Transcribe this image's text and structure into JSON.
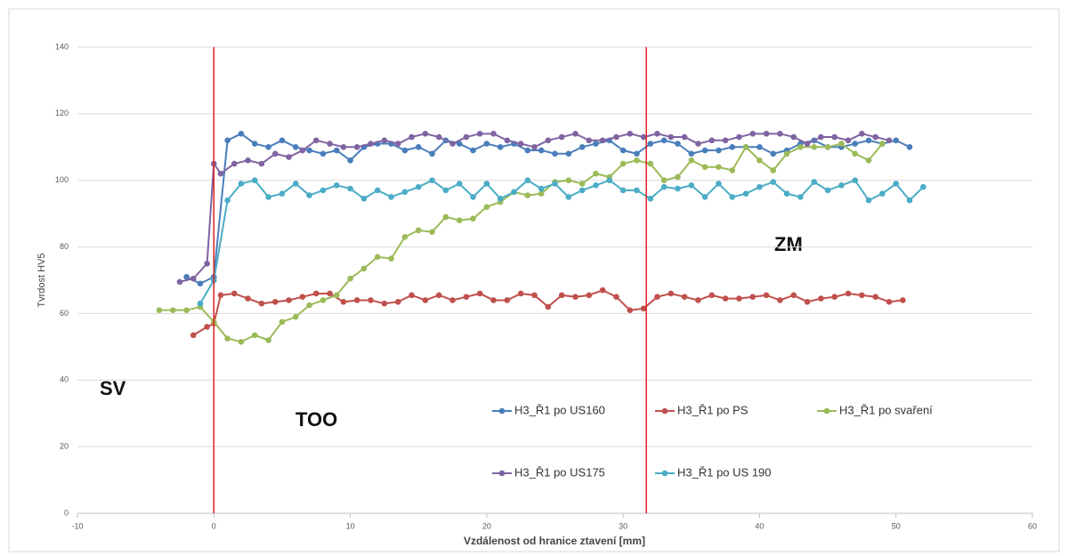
{
  "chart_data": {
    "type": "line",
    "y_label": "Tvrdost HV5",
    "x_label": "Vzdálenost od hranice ztavení [mm]",
    "annotations": [
      "SV",
      "TOO",
      "ZM"
    ],
    "xlim": [
      -10,
      60
    ],
    "xticks": [
      -10,
      0,
      10,
      20,
      30,
      40,
      50,
      60
    ],
    "ylim": [
      0,
      140
    ],
    "yticks": [
      0,
      20,
      40,
      60,
      80,
      100,
      120,
      140
    ],
    "grid": true,
    "vlines": [
      0,
      31.7
    ],
    "vline_color": "#e02020",
    "series": [
      {
        "name": "H3_Ř1 po US160",
        "color": "#4a7ebb",
        "x": [
          -2,
          -1,
          0,
          1,
          2,
          3,
          4,
          5,
          6,
          7,
          8,
          9,
          10,
          11,
          12,
          13,
          14,
          15,
          16,
          17,
          18,
          19,
          20,
          21,
          22,
          23,
          24,
          25,
          26,
          27,
          28,
          29,
          30,
          31,
          32,
          33,
          34,
          35,
          36,
          37,
          38,
          39,
          40,
          41,
          42,
          43,
          44,
          45,
          46,
          47,
          48,
          49,
          50,
          51
        ],
        "values": [
          71,
          69,
          71,
          112,
          114,
          111,
          110,
          112,
          110,
          109,
          108,
          109,
          106,
          110,
          111,
          111,
          109,
          110,
          108,
          112,
          111,
          109,
          111,
          110,
          111,
          109,
          109,
          108,
          108,
          110,
          111,
          112,
          109,
          108,
          111,
          112,
          111,
          108,
          109,
          109,
          110,
          110,
          110,
          108,
          109,
          111,
          112,
          110,
          110,
          111,
          112,
          111,
          112,
          110
        ]
      },
      {
        "name": "H3_Ř1 po PS",
        "color": "#c0504d",
        "x": [
          -1.5,
          -0.5,
          0,
          0.5,
          1.5,
          2.5,
          3.5,
          4.5,
          5.5,
          6.5,
          7.5,
          8.5,
          9.5,
          10.5,
          11.5,
          12.5,
          13.5,
          14.5,
          15.5,
          16.5,
          17.5,
          18.5,
          19.5,
          20.5,
          21.5,
          22.5,
          23.5,
          24.5,
          25.5,
          26.5,
          27.5,
          28.5,
          29.5,
          30.5,
          31.5,
          32.5,
          33.5,
          34.5,
          35.5,
          36.5,
          37.5,
          38.5,
          39.5,
          40.5,
          41.5,
          42.5,
          43.5,
          44.5,
          45.5,
          46.5,
          47.5,
          48.5,
          49.5,
          50.5
        ],
        "values": [
          53.5,
          56,
          57,
          65.5,
          66,
          64.5,
          63,
          63.5,
          64,
          65,
          66,
          66,
          63.5,
          64,
          64,
          63,
          63.5,
          65.5,
          64,
          65.5,
          64,
          65,
          66,
          64,
          64,
          66,
          65.5,
          62,
          65.5,
          65,
          65.5,
          67,
          65,
          61,
          61.5,
          65,
          66,
          65,
          64,
          65.5,
          64.5,
          64.5,
          65,
          65.5,
          64,
          65.5,
          63.5,
          64.5,
          65,
          66,
          65.5,
          65,
          63.5,
          64
        ]
      },
      {
        "name": "H3_Ř1 po svaření",
        "color": "#9bbb59",
        "x": [
          -4,
          -3,
          -2,
          -1,
          0,
          1,
          2,
          3,
          4,
          5,
          6,
          7,
          8,
          9,
          10,
          11,
          12,
          13,
          14,
          15,
          16,
          17,
          18,
          19,
          20,
          21,
          22,
          23,
          24,
          25,
          26,
          27,
          28,
          29,
          30,
          31,
          32,
          33,
          34,
          35,
          36,
          37,
          38,
          39,
          40,
          41,
          42,
          43,
          44,
          45,
          46,
          47,
          48,
          49
        ],
        "values": [
          61,
          61,
          61,
          62,
          57.5,
          52.5,
          51.5,
          53.5,
          52,
          57.5,
          59,
          62.5,
          64,
          65.5,
          70.5,
          73.5,
          77,
          76.5,
          83,
          85,
          84.5,
          89,
          88,
          88.5,
          92,
          93.5,
          96.5,
          95.5,
          96,
          99.5,
          100,
          99,
          102,
          101,
          105,
          106,
          105,
          100,
          101,
          106,
          104,
          104,
          103,
          110,
          106,
          103,
          108,
          110,
          110,
          110,
          111,
          108,
          106,
          111
        ]
      },
      {
        "name": "H3_Ř1 po US175",
        "color": "#8064a2",
        "x": [
          -2.5,
          -1.5,
          -0.5,
          0,
          0.5,
          1.5,
          2.5,
          3.5,
          4.5,
          5.5,
          6.5,
          7.5,
          8.5,
          9.5,
          10.5,
          11.5,
          12.5,
          13.5,
          14.5,
          15.5,
          16.5,
          17.5,
          18.5,
          19.5,
          20.5,
          21.5,
          22.5,
          23.5,
          24.5,
          25.5,
          26.5,
          27.5,
          28.5,
          29.5,
          30.5,
          31.5,
          32.5,
          33.5,
          34.5,
          35.5,
          36.5,
          37.5,
          38.5,
          39.5,
          40.5,
          41.5,
          42.5,
          43.5,
          44.5,
          45.5,
          46.5,
          47.5,
          48.5,
          49.5
        ],
        "values": [
          69.5,
          70.5,
          75,
          105,
          102,
          105,
          106,
          105,
          108,
          107,
          109,
          112,
          111,
          110,
          110,
          111,
          112,
          111,
          113,
          114,
          113,
          111,
          113,
          114,
          114,
          112,
          111,
          110,
          112,
          113,
          114,
          112,
          112,
          113,
          114,
          113,
          114,
          113,
          113,
          111,
          112,
          112,
          113,
          114,
          114,
          114,
          113,
          111,
          113,
          113,
          112,
          114,
          113,
          112
        ]
      },
      {
        "name": "H3_Ř1 po US 190",
        "color": "#4bacc6",
        "x": [
          -1,
          0,
          1,
          2,
          3,
          4,
          5,
          6,
          7,
          8,
          9,
          10,
          11,
          12,
          13,
          14,
          15,
          16,
          17,
          18,
          19,
          20,
          21,
          22,
          23,
          24,
          25,
          26,
          27,
          28,
          29,
          30,
          31,
          32,
          33,
          34,
          35,
          36,
          37,
          38,
          39,
          40,
          41,
          42,
          43,
          44,
          45,
          46,
          47,
          48,
          49,
          50,
          51,
          52
        ],
        "values": [
          63,
          70,
          94,
          99,
          100,
          95,
          96,
          99,
          95.5,
          97,
          98.5,
          97.5,
          94.5,
          97,
          95,
          96.5,
          98,
          100,
          97,
          99,
          95,
          99,
          94.5,
          96.5,
          100,
          97.5,
          99,
          95,
          97,
          98.5,
          100,
          97,
          97,
          94.5,
          98,
          97.5,
          98.5,
          95,
          99,
          95,
          96,
          98,
          99.5,
          96,
          95,
          99.5,
          97,
          98.5,
          100,
          94,
          96,
          99,
          94,
          98
        ]
      }
    ]
  }
}
